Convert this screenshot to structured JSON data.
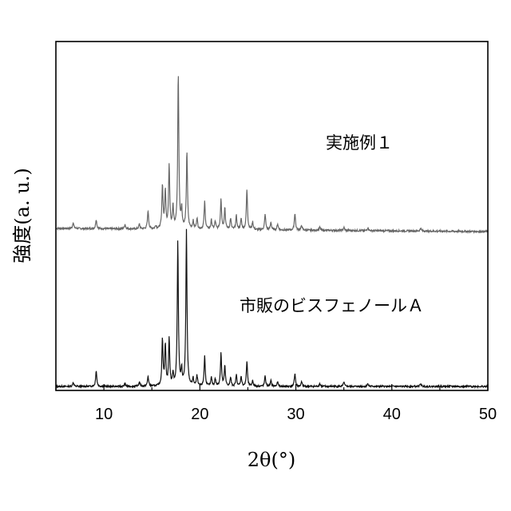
{
  "chart_data": {
    "type": "line",
    "xlabel": "2θ(°)",
    "ylabel": "強度(a. u.)",
    "xlim": [
      5,
      50
    ],
    "xticks": [
      10,
      20,
      30,
      40,
      50
    ],
    "yticks_shown": false,
    "grid": false,
    "series": [
      {
        "name": "実施例１",
        "color": "#666666",
        "peaks": [
          {
            "x": 6.8,
            "y": 0.04
          },
          {
            "x": 9.2,
            "y": 0.06
          },
          {
            "x": 12.2,
            "y": 0.03
          },
          {
            "x": 13.7,
            "y": 0.03
          },
          {
            "x": 14.6,
            "y": 0.12
          },
          {
            "x": 15.4,
            "y": 0.02
          },
          {
            "x": 16.1,
            "y": 0.28
          },
          {
            "x": 16.4,
            "y": 0.24
          },
          {
            "x": 16.8,
            "y": 0.41
          },
          {
            "x": 17.2,
            "y": 0.14
          },
          {
            "x": 17.75,
            "y": 1.0
          },
          {
            "x": 18.1,
            "y": 0.12
          },
          {
            "x": 18.65,
            "y": 0.5
          },
          {
            "x": 19.3,
            "y": 0.05
          },
          {
            "x": 19.7,
            "y": 0.07
          },
          {
            "x": 20.5,
            "y": 0.18
          },
          {
            "x": 21.2,
            "y": 0.06
          },
          {
            "x": 21.6,
            "y": 0.05
          },
          {
            "x": 22.2,
            "y": 0.2
          },
          {
            "x": 22.6,
            "y": 0.14
          },
          {
            "x": 23.2,
            "y": 0.07
          },
          {
            "x": 23.8,
            "y": 0.09
          },
          {
            "x": 24.3,
            "y": 0.07
          },
          {
            "x": 24.9,
            "y": 0.26
          },
          {
            "x": 25.5,
            "y": 0.05
          },
          {
            "x": 26.8,
            "y": 0.1
          },
          {
            "x": 27.4,
            "y": 0.05
          },
          {
            "x": 28.1,
            "y": 0.04
          },
          {
            "x": 29.9,
            "y": 0.11
          },
          {
            "x": 30.6,
            "y": 0.03
          },
          {
            "x": 32.5,
            "y": 0.02
          },
          {
            "x": 35.0,
            "y": 0.02
          },
          {
            "x": 37.5,
            "y": 0.02
          },
          {
            "x": 43.0,
            "y": 0.02
          }
        ]
      },
      {
        "name": "市販のビスフェノールＡ",
        "color": "#111111",
        "peaks": [
          {
            "x": 6.8,
            "y": 0.03
          },
          {
            "x": 9.2,
            "y": 0.11
          },
          {
            "x": 12.2,
            "y": 0.02
          },
          {
            "x": 13.7,
            "y": 0.03
          },
          {
            "x": 14.6,
            "y": 0.07
          },
          {
            "x": 16.1,
            "y": 0.32
          },
          {
            "x": 16.4,
            "y": 0.28
          },
          {
            "x": 16.8,
            "y": 0.32
          },
          {
            "x": 17.2,
            "y": 0.08
          },
          {
            "x": 17.7,
            "y": 1.0
          },
          {
            "x": 18.1,
            "y": 0.1
          },
          {
            "x": 18.6,
            "y": 1.08
          },
          {
            "x": 19.3,
            "y": 0.05
          },
          {
            "x": 19.7,
            "y": 0.07
          },
          {
            "x": 20.5,
            "y": 0.21
          },
          {
            "x": 21.2,
            "y": 0.06
          },
          {
            "x": 21.6,
            "y": 0.05
          },
          {
            "x": 22.2,
            "y": 0.23
          },
          {
            "x": 22.6,
            "y": 0.14
          },
          {
            "x": 23.2,
            "y": 0.06
          },
          {
            "x": 23.8,
            "y": 0.08
          },
          {
            "x": 24.3,
            "y": 0.07
          },
          {
            "x": 24.9,
            "y": 0.17
          },
          {
            "x": 25.5,
            "y": 0.04
          },
          {
            "x": 26.8,
            "y": 0.07
          },
          {
            "x": 27.4,
            "y": 0.04
          },
          {
            "x": 28.1,
            "y": 0.03
          },
          {
            "x": 29.9,
            "y": 0.09
          },
          {
            "x": 30.6,
            "y": 0.03
          },
          {
            "x": 32.5,
            "y": 0.02
          },
          {
            "x": 35.0,
            "y": 0.03
          },
          {
            "x": 37.5,
            "y": 0.02
          },
          {
            "x": 43.0,
            "y": 0.02
          }
        ]
      }
    ]
  }
}
